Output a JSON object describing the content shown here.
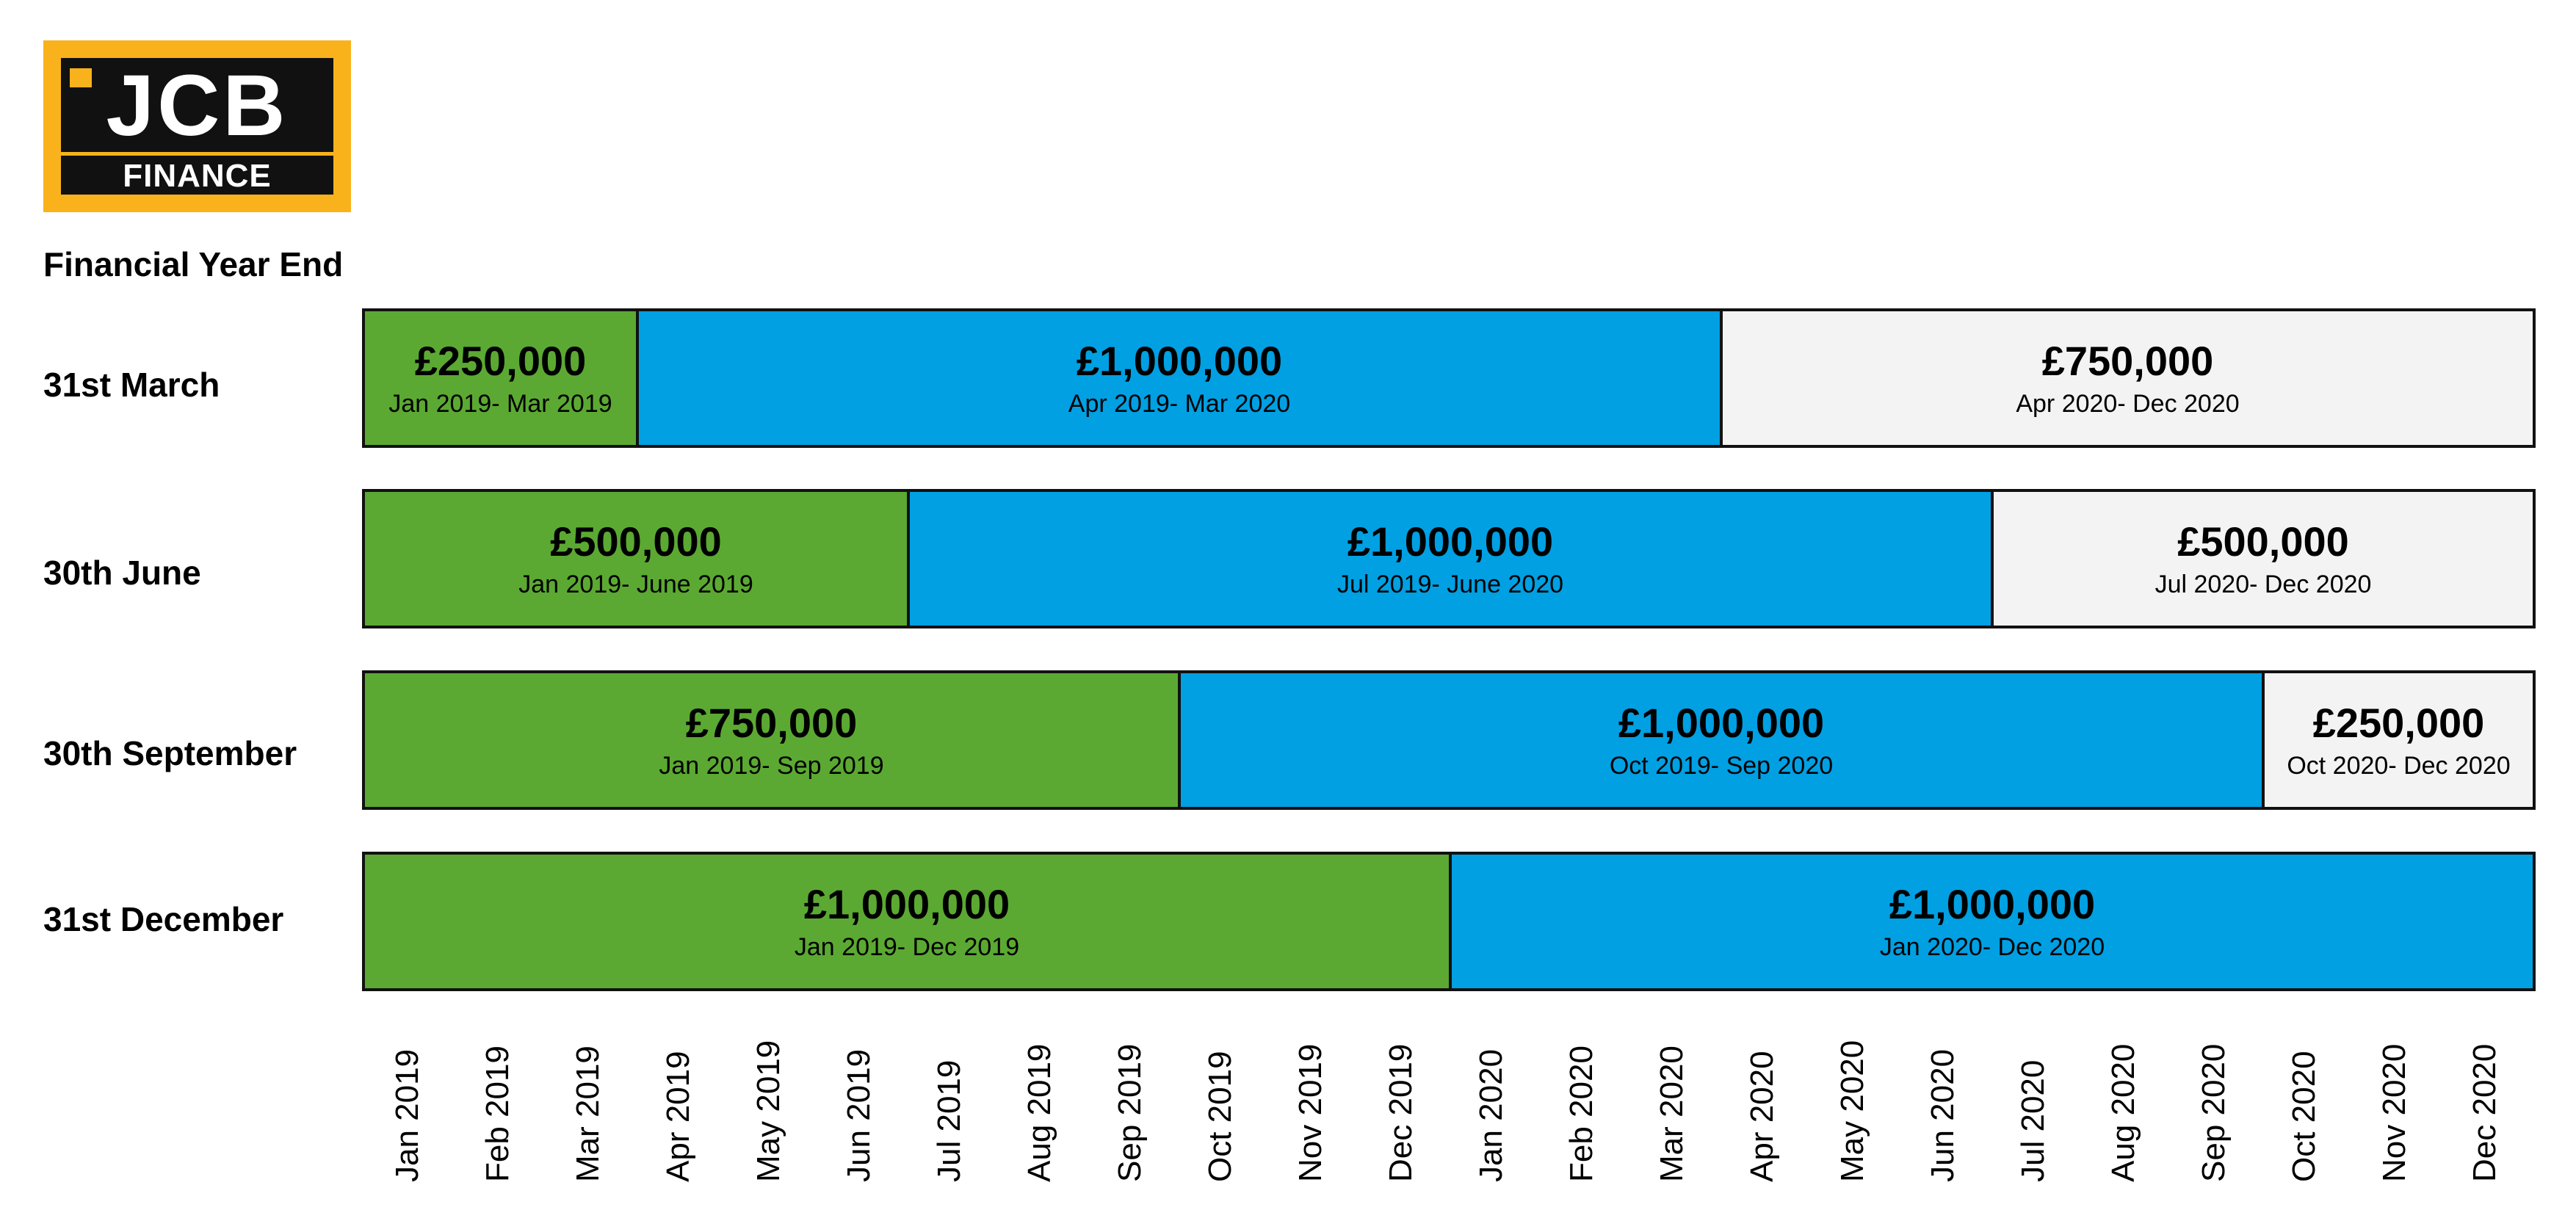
{
  "logo": {
    "brand": "JCB",
    "subtitle": "FINANCE",
    "color": "#f9b21c"
  },
  "heading": "Financial Year End",
  "colors": {
    "green": "#5ba932",
    "blue": "#00a0e3",
    "grey": "#f3f3f3"
  },
  "chart_data": {
    "type": "bar",
    "orientation": "horizontal-stacked-timeline",
    "x_unit": "month",
    "x_start": "Jan 2019",
    "x_end": "Dec 2020",
    "rows": [
      {
        "label": "31st March",
        "segments": [
          {
            "amount": "£250,000",
            "period": "Jan 2019- Mar 2019",
            "color": "green",
            "start": "2019-01",
            "end": "2019-03"
          },
          {
            "amount": "£1,000,000",
            "period": "Apr 2019- Mar 2020",
            "color": "blue",
            "start": "2019-04",
            "end": "2020-03"
          },
          {
            "amount": "£750,000",
            "period": "Apr 2020- Dec 2020",
            "color": "grey",
            "start": "2020-04",
            "end": "2020-12"
          }
        ]
      },
      {
        "label": "30th June",
        "segments": [
          {
            "amount": "£500,000",
            "period": "Jan 2019- June 2019",
            "color": "green",
            "start": "2019-01",
            "end": "2019-06"
          },
          {
            "amount": "£1,000,000",
            "period": "Jul 2019- June 2020",
            "color": "blue",
            "start": "2019-07",
            "end": "2020-06"
          },
          {
            "amount": "£500,000",
            "period": "Jul 2020- Dec 2020",
            "color": "grey",
            "start": "2020-07",
            "end": "2020-12"
          }
        ]
      },
      {
        "label": "30th September",
        "segments": [
          {
            "amount": "£750,000",
            "period": "Jan 2019- Sep 2019",
            "color": "green",
            "start": "2019-01",
            "end": "2019-09"
          },
          {
            "amount": "£1,000,000",
            "period": "Oct 2019- Sep 2020",
            "color": "blue",
            "start": "2019-10",
            "end": "2020-09"
          },
          {
            "amount": "£250,000",
            "period": "Oct 2020- Dec 2020",
            "color": "grey",
            "start": "2020-10",
            "end": "2020-12"
          }
        ]
      },
      {
        "label": "31st December",
        "segments": [
          {
            "amount": "£1,000,000",
            "period": "Jan 2019- Dec 2019",
            "color": "green",
            "start": "2019-01",
            "end": "2019-12"
          },
          {
            "amount": "£1,000,000",
            "period": "Jan 2020- Dec 2020",
            "color": "blue",
            "start": "2020-01",
            "end": "2020-12"
          }
        ]
      }
    ],
    "months": [
      "Jan 2019",
      "Feb 2019",
      "Mar 2019",
      "Apr 2019",
      "May 2019",
      "Jun 2019",
      "Jul 2019",
      "Aug 2019",
      "Sep 2019",
      "Oct 2019",
      "Nov 2019",
      "Dec 2019",
      "Jan 2020",
      "Feb 2020",
      "Mar 2020",
      "Apr 2020",
      "May 2020",
      "Jun 2020",
      "Jul 2020",
      "Aug 2020",
      "Sep 2020",
      "Oct 2020",
      "Nov 2020",
      "Dec 2020"
    ]
  }
}
